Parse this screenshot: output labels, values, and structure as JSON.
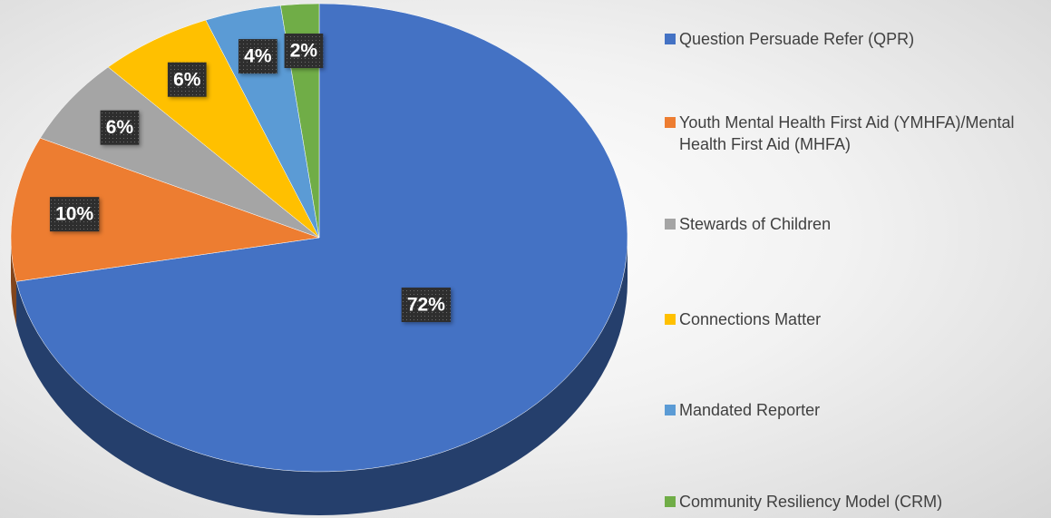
{
  "chart_data": {
    "type": "pie",
    "categories": [
      "Question Persuade Refer (QPR)",
      "Youth Mental Health First Aid (YMHFA)/Mental Health First Aid (MHFA)",
      "Stewards of Children",
      "Connections Matter",
      "Mandated Reporter",
      "Community Resiliency Model (CRM)"
    ],
    "values": [
      72,
      10,
      6,
      6,
      4,
      2
    ],
    "value_labels": [
      "72%",
      "10%",
      "6%",
      "6%",
      "4%",
      "2%"
    ],
    "colors": [
      "#4472c4",
      "#ed7d31",
      "#a5a5a5",
      "#ffc000",
      "#5b9bd5",
      "#70ad47"
    ],
    "legend": "right"
  }
}
